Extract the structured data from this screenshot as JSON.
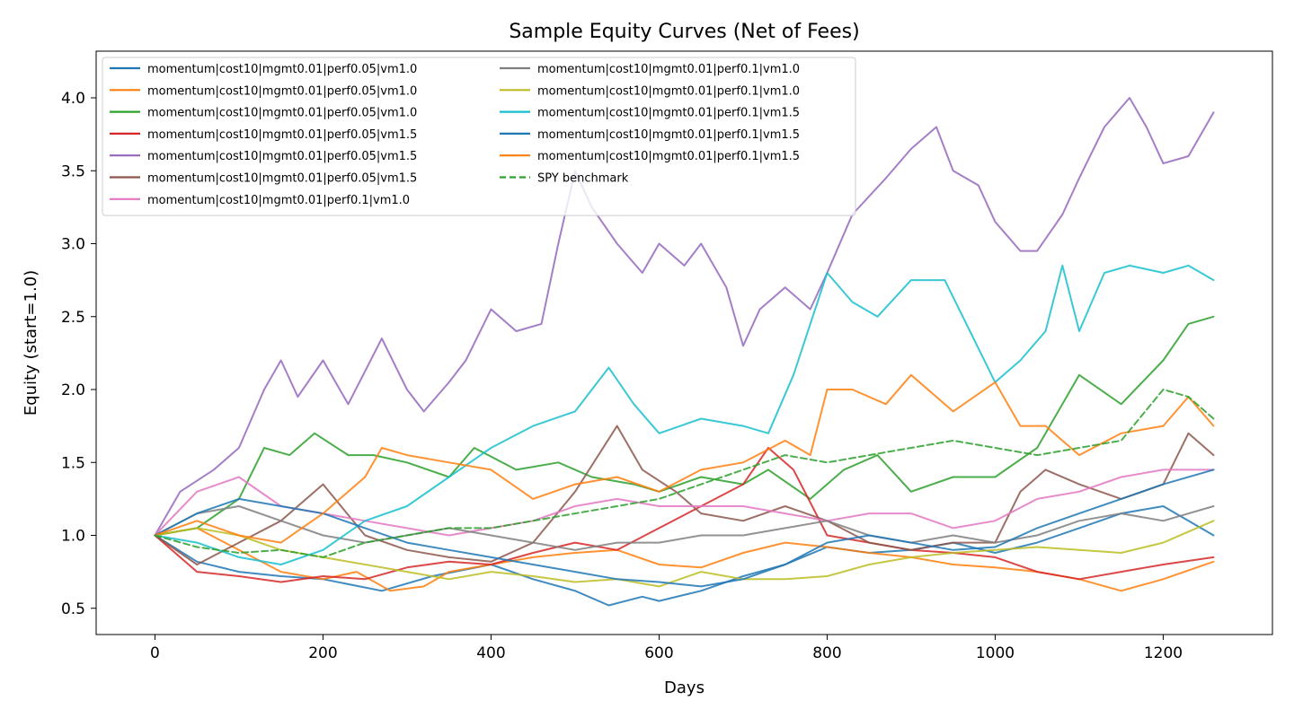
{
  "chart_data": {
    "type": "line",
    "title": "Sample Equity Curves (Net of Fees)",
    "xlabel": "Days",
    "ylabel": "Equity (start=1.0)",
    "xlim": [
      -70,
      1330
    ],
    "ylim": [
      0.32,
      4.32
    ],
    "xticks": [
      0,
      200,
      400,
      600,
      800,
      1000,
      1200
    ],
    "yticks": [
      0.5,
      1.0,
      1.5,
      2.0,
      2.5,
      3.0,
      3.5,
      4.0
    ],
    "ytick_labels": [
      "0.5",
      "1.0",
      "1.5",
      "2.0",
      "2.5",
      "3.0",
      "3.5",
      "4.0"
    ],
    "legend_position": "top-left",
    "legend_columns": 2,
    "series": [
      {
        "name": "momentum|cost10|mgmt0.01|perf0.05|vm1.0",
        "color": "#1f77b4",
        "dash": "solid",
        "x": [
          0,
          50,
          100,
          150,
          200,
          270,
          330,
          400,
          450,
          500,
          540,
          580,
          600,
          650,
          700,
          750,
          800,
          850,
          900,
          950,
          1000,
          1050,
          1100,
          1150,
          1200,
          1260
        ],
        "y": [
          1.0,
          0.82,
          0.75,
          0.72,
          0.7,
          0.62,
          0.72,
          0.8,
          0.7,
          0.62,
          0.52,
          0.58,
          0.55,
          0.62,
          0.72,
          0.8,
          0.92,
          0.88,
          0.9,
          0.95,
          0.88,
          0.95,
          1.05,
          1.15,
          1.2,
          1.0
        ]
      },
      {
        "name": "momentum|cost10|mgmt0.01|perf0.05|vm1.0",
        "color": "#ff7f0e",
        "dash": "solid",
        "x": [
          0,
          50,
          100,
          150,
          200,
          240,
          280,
          320,
          350,
          400,
          450,
          500,
          550,
          600,
          650,
          700,
          750,
          800,
          850,
          900,
          950,
          1000,
          1050,
          1100,
          1150,
          1200,
          1260
        ],
        "y": [
          1.0,
          1.05,
          0.9,
          0.75,
          0.7,
          0.75,
          0.62,
          0.65,
          0.75,
          0.8,
          0.85,
          0.88,
          0.9,
          0.8,
          0.78,
          0.88,
          0.95,
          0.92,
          0.88,
          0.85,
          0.8,
          0.78,
          0.75,
          0.7,
          0.62,
          0.7,
          0.82
        ]
      },
      {
        "name": "momentum|cost10|mgmt0.01|perf0.05|vm1.0",
        "color": "#2ca02c",
        "dash": "solid",
        "x": [
          0,
          50,
          100,
          130,
          160,
          190,
          230,
          260,
          300,
          350,
          380,
          430,
          480,
          520,
          570,
          600,
          650,
          700,
          730,
          780,
          820,
          860,
          900,
          950,
          1000,
          1050,
          1100,
          1150,
          1200,
          1230,
          1260
        ],
        "y": [
          1.0,
          1.05,
          1.25,
          1.6,
          1.55,
          1.7,
          1.55,
          1.55,
          1.5,
          1.4,
          1.6,
          1.45,
          1.5,
          1.4,
          1.35,
          1.3,
          1.4,
          1.35,
          1.45,
          1.25,
          1.45,
          1.55,
          1.3,
          1.4,
          1.4,
          1.6,
          2.1,
          1.9,
          2.2,
          2.45,
          2.5
        ]
      },
      {
        "name": "momentum|cost10|mgmt0.01|perf0.05|vm1.5",
        "color": "#d62728",
        "dash": "solid",
        "x": [
          0,
          50,
          100,
          150,
          200,
          250,
          300,
          350,
          400,
          450,
          500,
          550,
          600,
          650,
          700,
          730,
          760,
          800,
          850,
          900,
          950,
          1000,
          1050,
          1100,
          1150,
          1200,
          1260
        ],
        "y": [
          1.0,
          0.75,
          0.72,
          0.68,
          0.72,
          0.7,
          0.78,
          0.82,
          0.8,
          0.88,
          0.95,
          0.9,
          1.05,
          1.2,
          1.35,
          1.6,
          1.45,
          1.0,
          0.95,
          0.9,
          0.88,
          0.85,
          0.75,
          0.7,
          0.75,
          0.8,
          0.85
        ]
      },
      {
        "name": "momentum|cost10|mgmt0.01|perf0.05|vm1.5",
        "color": "#9467bd",
        "dash": "solid",
        "x": [
          0,
          30,
          70,
          100,
          130,
          150,
          170,
          200,
          230,
          270,
          300,
          320,
          350,
          370,
          400,
          430,
          460,
          480,
          500,
          520,
          550,
          580,
          600,
          630,
          650,
          680,
          700,
          720,
          750,
          780,
          800,
          830,
          870,
          900,
          930,
          950,
          980,
          1000,
          1030,
          1050,
          1080,
          1100,
          1130,
          1160,
          1180,
          1200,
          1230,
          1260
        ],
        "y": [
          1.0,
          1.3,
          1.45,
          1.6,
          2.0,
          2.2,
          1.95,
          2.2,
          1.9,
          2.35,
          2.0,
          1.85,
          2.05,
          2.2,
          2.55,
          2.4,
          2.45,
          3.0,
          3.5,
          3.25,
          3.0,
          2.8,
          3.0,
          2.85,
          3.0,
          2.7,
          2.3,
          2.55,
          2.7,
          2.55,
          2.8,
          3.2,
          3.45,
          3.65,
          3.8,
          3.5,
          3.4,
          3.15,
          2.95,
          2.95,
          3.2,
          3.45,
          3.8,
          4.0,
          3.8,
          3.55,
          3.6,
          3.9
        ]
      },
      {
        "name": "momentum|cost10|mgmt0.01|perf0.05|vm1.5",
        "color": "#8c564b",
        "dash": "solid",
        "x": [
          0,
          50,
          100,
          150,
          200,
          250,
          300,
          350,
          400,
          450,
          500,
          550,
          580,
          620,
          650,
          700,
          750,
          800,
          850,
          900,
          950,
          1000,
          1030,
          1060,
          1100,
          1150,
          1200,
          1230,
          1260
        ],
        "y": [
          1.0,
          0.8,
          0.95,
          1.1,
          1.35,
          1.0,
          0.9,
          0.85,
          0.82,
          0.95,
          1.3,
          1.75,
          1.45,
          1.3,
          1.15,
          1.1,
          1.2,
          1.1,
          0.95,
          0.9,
          0.95,
          0.95,
          1.3,
          1.45,
          1.35,
          1.25,
          1.35,
          1.7,
          1.55
        ]
      },
      {
        "name": "momentum|cost10|mgmt0.01|perf0.1|vm1.0",
        "color": "#e377c2",
        "dash": "solid",
        "x": [
          0,
          50,
          100,
          150,
          200,
          250,
          300,
          350,
          400,
          450,
          500,
          550,
          600,
          650,
          700,
          750,
          800,
          850,
          900,
          950,
          1000,
          1050,
          1100,
          1150,
          1200,
          1260
        ],
        "y": [
          1.0,
          1.3,
          1.4,
          1.2,
          1.15,
          1.1,
          1.05,
          1.0,
          1.05,
          1.1,
          1.2,
          1.25,
          1.2,
          1.2,
          1.2,
          1.15,
          1.1,
          1.15,
          1.15,
          1.05,
          1.1,
          1.25,
          1.3,
          1.4,
          1.45,
          1.45
        ]
      },
      {
        "name": "momentum|cost10|mgmt0.01|perf0.1|vm1.0",
        "color": "#7f7f7f",
        "dash": "solid",
        "x": [
          0,
          50,
          100,
          150,
          200,
          250,
          300,
          350,
          400,
          450,
          500,
          550,
          600,
          650,
          700,
          750,
          800,
          850,
          900,
          950,
          1000,
          1050,
          1100,
          1150,
          1200,
          1260
        ],
        "y": [
          1.0,
          1.15,
          1.2,
          1.1,
          1.0,
          0.95,
          1.0,
          1.05,
          1.0,
          0.95,
          0.9,
          0.95,
          0.95,
          1.0,
          1.0,
          1.05,
          1.1,
          1.0,
          0.95,
          1.0,
          0.95,
          1.0,
          1.1,
          1.15,
          1.1,
          1.2
        ]
      },
      {
        "name": "momentum|cost10|mgmt0.01|perf0.1|vm1.0",
        "color": "#bcbd22",
        "dash": "solid",
        "x": [
          0,
          50,
          100,
          150,
          200,
          250,
          300,
          350,
          400,
          450,
          500,
          550,
          600,
          650,
          700,
          750,
          800,
          850,
          900,
          950,
          1000,
          1050,
          1100,
          1150,
          1200,
          1260
        ],
        "y": [
          1.0,
          1.05,
          1.0,
          0.9,
          0.85,
          0.8,
          0.75,
          0.7,
          0.75,
          0.72,
          0.68,
          0.7,
          0.65,
          0.75,
          0.7,
          0.7,
          0.72,
          0.8,
          0.85,
          0.88,
          0.9,
          0.92,
          0.9,
          0.88,
          0.95,
          1.1
        ]
      },
      {
        "name": "momentum|cost10|mgmt0.01|perf0.1|vm1.5",
        "color": "#17becf",
        "dash": "solid",
        "x": [
          0,
          50,
          100,
          150,
          200,
          250,
          300,
          350,
          400,
          450,
          500,
          540,
          570,
          600,
          650,
          700,
          730,
          760,
          800,
          830,
          860,
          900,
          940,
          970,
          1000,
          1030,
          1060,
          1080,
          1100,
          1130,
          1160,
          1200,
          1230,
          1260
        ],
        "y": [
          1.0,
          0.95,
          0.85,
          0.8,
          0.9,
          1.1,
          1.2,
          1.4,
          1.6,
          1.75,
          1.85,
          2.15,
          1.9,
          1.7,
          1.8,
          1.75,
          1.7,
          2.1,
          2.8,
          2.6,
          2.5,
          2.75,
          2.75,
          2.4,
          2.05,
          2.2,
          2.4,
          2.85,
          2.4,
          2.8,
          2.85,
          2.8,
          2.85,
          2.75
        ]
      },
      {
        "name": "momentum|cost10|mgmt0.01|perf0.1|vm1.5",
        "color": "#1f77b4",
        "dash": "solid",
        "x": [
          0,
          50,
          100,
          150,
          200,
          250,
          300,
          350,
          400,
          450,
          500,
          550,
          600,
          650,
          700,
          750,
          800,
          850,
          900,
          950,
          1000,
          1050,
          1100,
          1150,
          1200,
          1260
        ],
        "y": [
          1.0,
          1.15,
          1.25,
          1.2,
          1.15,
          1.05,
          0.95,
          0.9,
          0.85,
          0.8,
          0.75,
          0.7,
          0.68,
          0.65,
          0.7,
          0.8,
          0.95,
          1.0,
          0.95,
          0.9,
          0.92,
          1.05,
          1.15,
          1.25,
          1.35,
          1.45
        ]
      },
      {
        "name": "momentum|cost10|mgmt0.01|perf0.1|vm1.5",
        "color": "#ff7f0e",
        "dash": "solid",
        "x": [
          0,
          50,
          100,
          150,
          200,
          250,
          270,
          300,
          350,
          400,
          450,
          500,
          550,
          600,
          650,
          700,
          750,
          780,
          800,
          830,
          870,
          900,
          950,
          1000,
          1030,
          1060,
          1100,
          1150,
          1200,
          1230,
          1260
        ],
        "y": [
          1.0,
          1.1,
          1.0,
          0.95,
          1.15,
          1.4,
          1.6,
          1.55,
          1.5,
          1.45,
          1.25,
          1.35,
          1.4,
          1.3,
          1.45,
          1.5,
          1.65,
          1.55,
          2.0,
          2.0,
          1.9,
          2.1,
          1.85,
          2.05,
          1.75,
          1.75,
          1.55,
          1.7,
          1.75,
          1.95,
          1.75
        ]
      },
      {
        "name": "SPY benchmark",
        "color": "#2ca02c",
        "dash": "dashed",
        "x": [
          0,
          50,
          100,
          150,
          200,
          250,
          300,
          350,
          400,
          450,
          500,
          550,
          600,
          650,
          700,
          750,
          800,
          850,
          900,
          950,
          1000,
          1050,
          1100,
          1150,
          1200,
          1230,
          1260
        ],
        "y": [
          1.0,
          0.92,
          0.88,
          0.9,
          0.85,
          0.95,
          1.0,
          1.05,
          1.05,
          1.1,
          1.15,
          1.2,
          1.25,
          1.35,
          1.45,
          1.55,
          1.5,
          1.55,
          1.6,
          1.65,
          1.6,
          1.55,
          1.6,
          1.65,
          2.0,
          1.95,
          1.8
        ]
      }
    ]
  }
}
